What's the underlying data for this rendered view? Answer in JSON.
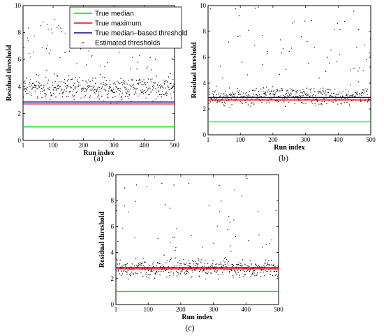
{
  "chart_data": [
    {
      "type": "scatter",
      "panel_label": "(a)",
      "xlabel": "Run index",
      "ylabel": "Residual threshold",
      "xlim": [
        1,
        500
      ],
      "ylim": [
        0,
        10
      ],
      "xticks": [
        1,
        100,
        200,
        300,
        400,
        500
      ],
      "yticks": [
        0,
        2,
        4,
        6,
        8,
        10
      ],
      "legend": {
        "placement": "top-right",
        "entries": [
          "True median",
          "True maximum",
          "True median–based threshold",
          "Estimated thresholds"
        ]
      },
      "series": [
        {
          "name": "True median",
          "kind": "line",
          "value": 1.0,
          "color": "#00dd00"
        },
        {
          "name": "True maximum",
          "kind": "line",
          "value": 2.7,
          "color": "#ff0000"
        },
        {
          "name": "True median–based threshold",
          "kind": "line",
          "value": 2.85,
          "color": "#00008b"
        },
        {
          "name": "Estimated thresholds",
          "kind": "points",
          "n": 500,
          "typical_min": 2.6,
          "typical_max": 5.2,
          "center": 3.9,
          "outlier_max": 9.2,
          "color": "#000000"
        }
      ]
    },
    {
      "type": "scatter",
      "panel_label": "(b)",
      "xlabel": "Run index",
      "ylabel": "Residual threshold",
      "xlim": [
        1,
        500
      ],
      "ylim": [
        0,
        10
      ],
      "xticks": [
        1,
        100,
        200,
        300,
        400,
        500
      ],
      "yticks": [
        0,
        2,
        4,
        6,
        8,
        10
      ],
      "series": [
        {
          "name": "True median",
          "kind": "line",
          "value": 1.0,
          "color": "#00dd00"
        },
        {
          "name": "True maximum",
          "kind": "line",
          "value": 2.7,
          "color": "#ff0000"
        },
        {
          "name": "True median–based threshold",
          "kind": "line",
          "value": 2.9,
          "color": "#00008b"
        },
        {
          "name": "Estimated thresholds",
          "kind": "points",
          "n": 500,
          "typical_min": 2.0,
          "typical_max": 4.0,
          "center": 2.8,
          "outlier_max": 9.9,
          "color": "#000000"
        }
      ]
    },
    {
      "type": "scatter",
      "panel_label": "(c)",
      "xlabel": "Run index",
      "ylabel": "Residual threshold",
      "xlim": [
        1,
        500
      ],
      "ylim": [
        0,
        10
      ],
      "xticks": [
        1,
        100,
        200,
        300,
        400,
        500
      ],
      "yticks": [
        0,
        2,
        4,
        6,
        8,
        10
      ],
      "series": [
        {
          "name": "True median",
          "kind": "line",
          "value": 1.0,
          "color": "#00dd00"
        },
        {
          "name": "True maximum",
          "kind": "line",
          "value": 2.75,
          "color": "#ff0000"
        },
        {
          "name": "True median–based threshold",
          "kind": "line",
          "value": 2.85,
          "color": "#00008b"
        },
        {
          "name": "Estimated thresholds",
          "kind": "points",
          "n": 500,
          "typical_min": 1.8,
          "typical_max": 3.8,
          "center": 2.7,
          "outlier_max": 10.0,
          "color": "#000000"
        }
      ]
    }
  ]
}
